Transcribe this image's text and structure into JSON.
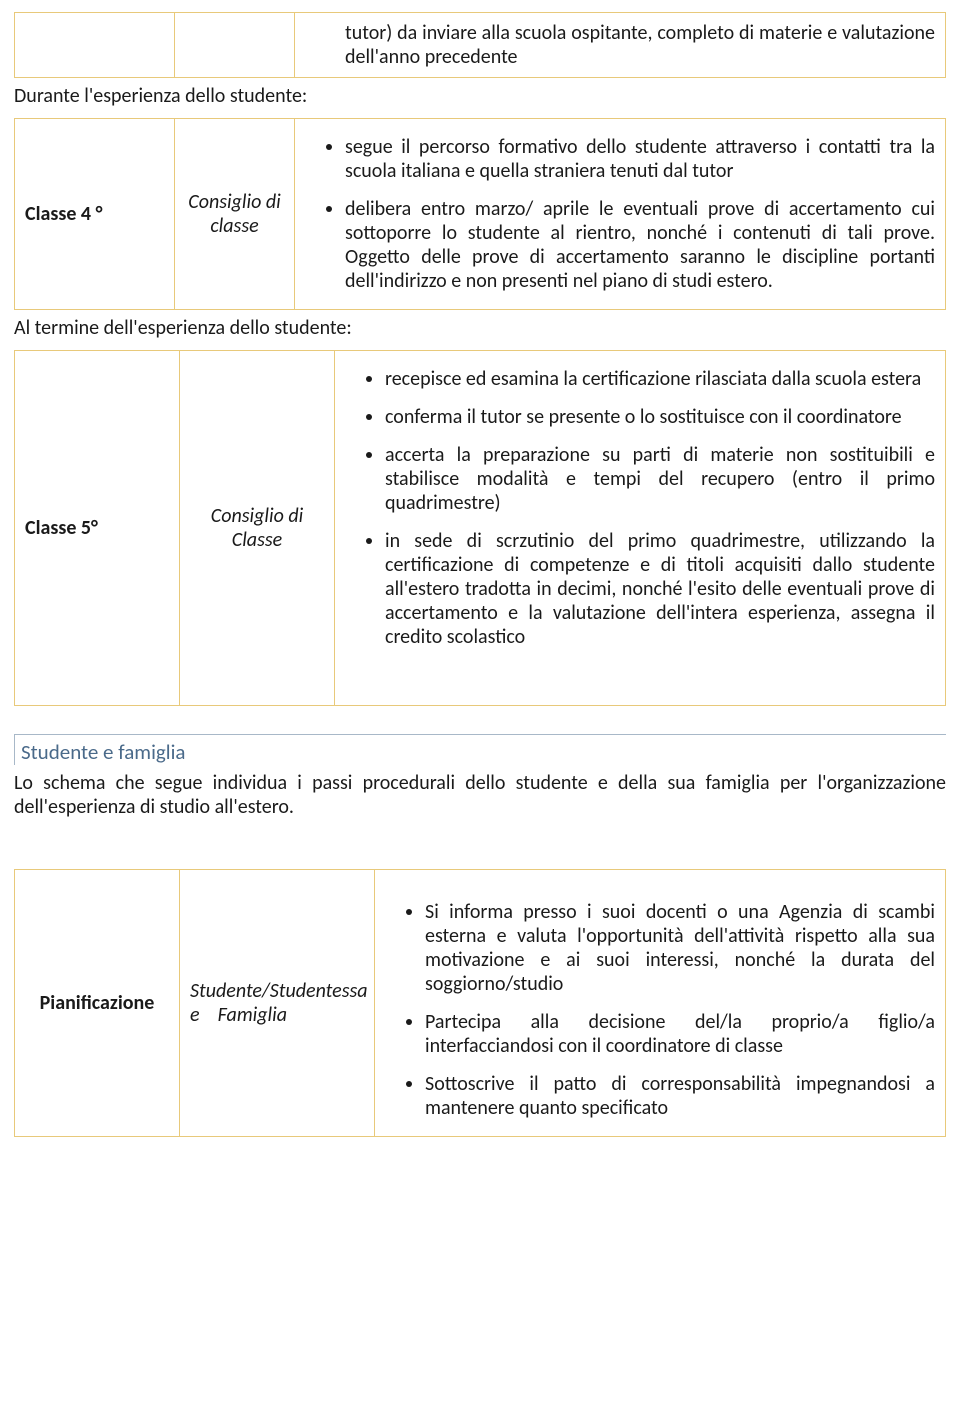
{
  "row0_content": "tutor) da inviare alla scuola ospitante, completo di materie e valutazione dell'anno precedente",
  "label_durante": "Durante l'esperienza dello studente:",
  "row1_a": "Classe 4 °",
  "row1_b": "Consiglio di classe",
  "row1_bullets": [
    "segue il percorso formativo dello studente attraverso i contatti tra la scuola italiana e quella straniera tenuti dal tutor",
    "delibera entro marzo/ aprile le eventuali prove di accertamento cui sottoporre lo studente al rientro, nonché i contenuti di tali prove. Oggetto delle prove di accertamento saranno le discipline portanti dell'indirizzo e non presenti nel piano di studi estero."
  ],
  "label_termine": "Al termine dell'esperienza dello studente:",
  "row2_a": "Classe 5°",
  "row2_b": "Consiglio di Classe",
  "row2_bullets": [
    "recepisce ed esamina la certificazione rilasciata dalla scuola estera",
    "conferma il tutor se presente o lo sostituisce con il coordinatore",
    "accerta la preparazione su parti di materie non sostituibili e stabilisce modalità e tempi del recupero (entro il primo quadrimestre)",
    "in sede di scrzutinio del primo quadrimestre, utilizzando la certificazione di competenze e di titoli acquisiti dallo studente all'estero tradotta in decimi, nonché l'esito delle eventuali prove di accertamento e la valutazione dell'intera esperienza, assegna il credito scolastico"
  ],
  "section_title": "Studente e famiglia",
  "section_intro": "Lo schema che segue individua i passi procedurali dello studente e della sua famiglia per l'organizzazione dell'esperienza di studio all'estero.",
  "row3_a": "Pianificazione",
  "row3_b_line1": "Studente/Studentessa",
  "row3_b_line2": "e    Famiglia",
  "row3_bullets": [
    "Si informa presso i suoi docenti o una Agenzia di scambi esterna e valuta l'opportunità dell'attività rispetto alla sua motivazione e ai suoi interessi, nonché la durata del soggiorno/studio",
    "Partecipa alla decisione del/la proprio/a figlio/a interfacciandosi con il coordinatore di classe",
    "Sottoscrive il patto di corresponsabilità impegnandosi a mantenere quanto specificato"
  ]
}
